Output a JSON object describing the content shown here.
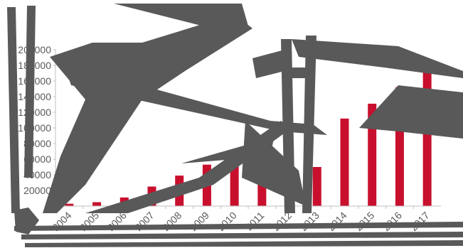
{
  "chart_data": {
    "type": "bar",
    "categories": [
      "2004",
      "2005",
      "2006",
      "2007",
      "2008",
      "2009",
      "2010",
      "2011",
      "2012",
      "2013",
      "2014",
      "2015",
      "2016",
      "2017"
    ],
    "values": [
      3000,
      5000,
      11000,
      25000,
      39000,
      53000,
      57000,
      66000,
      77000,
      50000,
      112000,
      131000,
      152000,
      172000
    ],
    "y_ticks": [
      "0",
      "20000",
      "40000",
      "60000",
      "80000",
      "100000",
      "120000",
      "140000",
      "160000",
      "180000",
      "200000"
    ],
    "ylim": [
      0,
      200000
    ],
    "grid": false,
    "legend": "none",
    "bar_color": "#c8102e",
    "axis_color": "#bfbfbf",
    "title": "",
    "xlabel": "",
    "ylabel": ""
  },
  "colors": {
    "overlay": "#595959"
  }
}
